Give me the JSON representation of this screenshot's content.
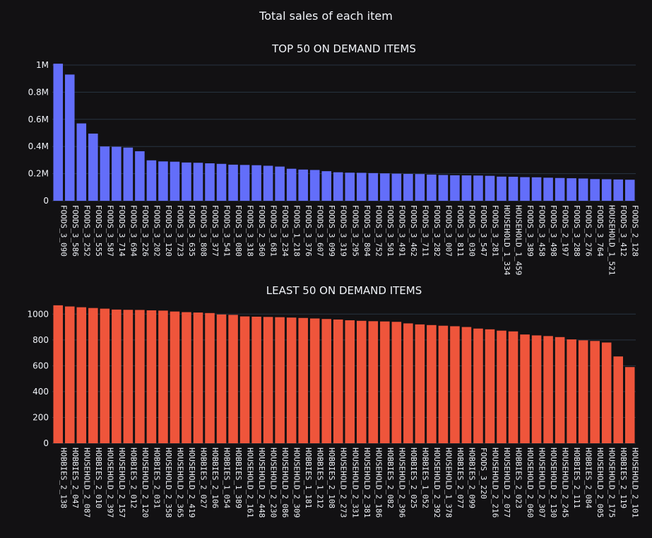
{
  "title": "Total sales of each item",
  "chart_data": [
    {
      "type": "bar",
      "title": "TOP 50 ON DEMAND ITEMS",
      "color": "#636efa",
      "ylim": [
        0,
        1000000
      ],
      "ytick_values": [
        0,
        200000,
        400000,
        600000,
        800000,
        1000000
      ],
      "ytick_labels": [
        "0",
        "0.2M",
        "0.4M",
        "0.6M",
        "0.8M",
        "1M"
      ],
      "grid": true,
      "categories": [
        "FOODS_3_090",
        "FOODS_3_586",
        "FOODS_3_252",
        "FOODS_3_555",
        "FOODS_3_587",
        "FOODS_3_714",
        "FOODS_3_694",
        "FOODS_3_226",
        "FOODS_3_202",
        "FOODS_3_120",
        "FOODS_3_723",
        "FOODS_3_635",
        "FOODS_3_808",
        "FOODS_3_377",
        "FOODS_3_541",
        "FOODS_3_080",
        "FOODS_3_318",
        "FOODS_2_360",
        "FOODS_3_681",
        "FOODS_3_234",
        "FOODS_1_218",
        "FOODS_3_376",
        "FOODS_3_607",
        "FOODS_3_099",
        "FOODS_3_319",
        "FOODS_3_295",
        "FOODS_3_804",
        "FOODS_3_752",
        "FOODS_3_501",
        "FOODS_3_491",
        "FOODS_3_462",
        "FOODS_3_711",
        "FOODS_3_282",
        "FOODS_3_007",
        "FOODS_3_811",
        "FOODS_3_030",
        "FOODS_3_547",
        "FOODS_3_281",
        "HOUSEHOLD_1_334",
        "HOUSEHOLD_1_459",
        "FOODS_3_389",
        "FOODS_3_458",
        "FOODS_3_498",
        "FOODS_2_197",
        "FOODS_3_288",
        "FOODS_2_276",
        "FOODS_3_764",
        "HOUSEHOLD_1_521",
        "FOODS_3_412",
        "FOODS_2_128"
      ],
      "values": [
        1010000,
        930000,
        570000,
        495000,
        400000,
        398000,
        392000,
        365000,
        298000,
        290000,
        288000,
        282000,
        280000,
        276000,
        272000,
        266000,
        264000,
        262000,
        258000,
        252000,
        236000,
        230000,
        227000,
        218000,
        210000,
        207000,
        206000,
        204000,
        202000,
        200000,
        198000,
        197000,
        193000,
        190000,
        188000,
        187000,
        186000,
        184000,
        178000,
        177000,
        174000,
        173000,
        170000,
        168000,
        166000,
        164000,
        160000,
        159000,
        157000,
        155000
      ]
    },
    {
      "type": "bar",
      "title": "LEAST 50 ON DEMAND ITEMS",
      "color": "#ef553b",
      "ylim": [
        0,
        1100
      ],
      "ytick_values": [
        0,
        200,
        400,
        600,
        800,
        1000
      ],
      "ytick_labels": [
        "0",
        "200",
        "400",
        "600",
        "800",
        "1000"
      ],
      "grid": true,
      "categories": [
        "HOBBIES_2_138",
        "HOBBIES_2_047",
        "HOUSEHOLD_2_087",
        "HOBBIES_2_010",
        "HOUSEHOLD_2_397",
        "HOUSEHOLD_2_157",
        "HOBBIES_2_012",
        "HOUSEHOLD_2_120",
        "HOBBIES_2_031",
        "HOUSEHOLD_2_358",
        "HOUSEHOLD_2_365",
        "HOUSEHOLD_2_419",
        "HOBBIES_2_027",
        "HOBBIES_2_106",
        "HOBBIES_1_054",
        "HOBBIES_1_389",
        "HOUSEHOLD_2_161",
        "HOUSEHOLD_2_448",
        "HOUSEHOLD_2_230",
        "HOUSEHOLD_2_086",
        "HOUSEHOLD_2_309",
        "HOBBIES_1_181",
        "HOBBIES_1_212",
        "HOBBIES_2_108",
        "HOUSEHOLD_2_273",
        "HOUSEHOLD_2_331",
        "HOUSEHOLD_2_381",
        "HOUSEHOLD_2_186",
        "HOBBIES_2_082",
        "HOUSEHOLD_2_396",
        "HOBBIES_2_025",
        "HOBBIES_1_052",
        "HOUSEHOLD_2_392",
        "HOUSEHOLD_1_378",
        "HOBBIES_2_077",
        "HOBBIES_2_099",
        "FOODS_3_220",
        "HOUSEHOLD_2_216",
        "HOUSEHOLD_2_077",
        "HOBBIES_2_023",
        "HOUSEHOLD_2_060",
        "HOUSEHOLD_2_307",
        "HOUSEHOLD_2_130",
        "HOUSEHOLD_2_245",
        "HOBBIES_2_111",
        "HOBBIES_2_084",
        "HOUSEHOLD_2_005",
        "HOUSEHOLD_2_175",
        "HOBBIES_2_119",
        "HOUSEHOLD_2_101"
      ],
      "values": [
        1068,
        1059,
        1053,
        1047,
        1042,
        1035,
        1033,
        1032,
        1029,
        1027,
        1020,
        1015,
        1012,
        1008,
        997,
        994,
        982,
        980,
        978,
        976,
        973,
        970,
        966,
        962,
        958,
        952,
        948,
        945,
        943,
        940,
        928,
        920,
        915,
        910,
        906,
        900,
        888,
        882,
        872,
        866,
        842,
        835,
        830,
        822,
        804,
        797,
        792,
        780,
        672,
        590
      ]
    }
  ]
}
